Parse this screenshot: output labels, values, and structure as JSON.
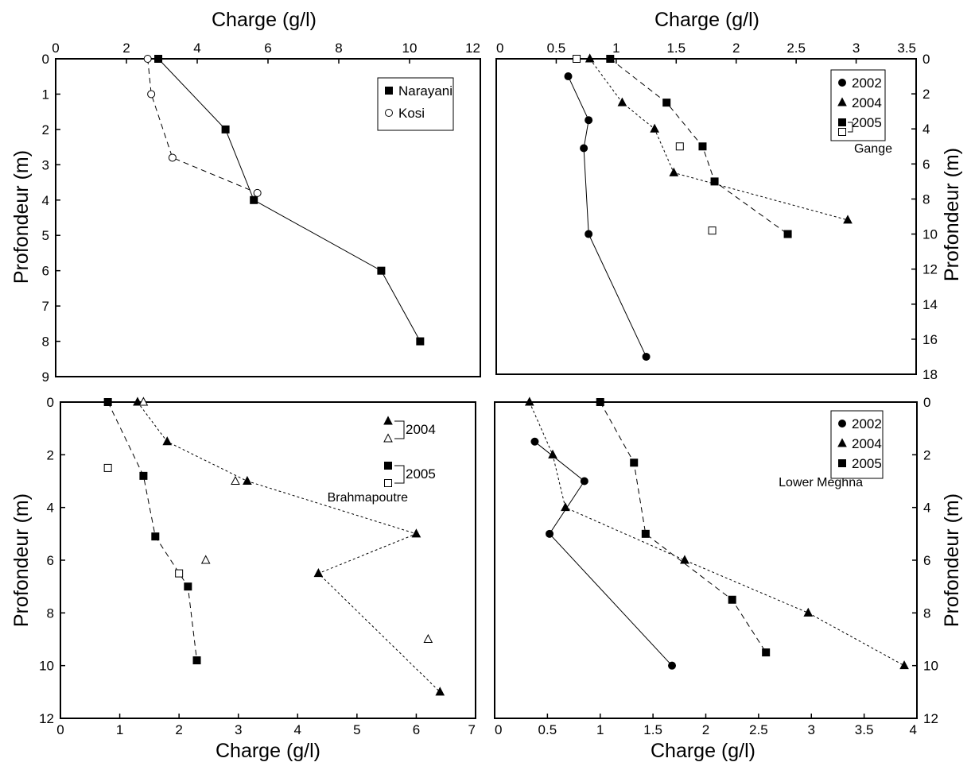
{
  "figure": {
    "top_xlabel": "Charge (g/l)",
    "bottom_xlabel": "Charge (g/l)",
    "left_ylabel": "Profondeur (m)",
    "right_ylabel": "Profondeur (m)"
  },
  "chart_data": [
    {
      "type": "scatter",
      "panel": "top-left",
      "title": "",
      "xlabel": "Charge (g/l)",
      "ylabel": "Profondeur (m)",
      "xlim": [
        0,
        12
      ],
      "ylim": [
        9,
        0
      ],
      "xticks": [
        "0",
        "2",
        "4",
        "6",
        "8",
        "10",
        "12"
      ],
      "yticks": [
        "0",
        "1",
        "2",
        "3",
        "4",
        "5",
        "6",
        "7",
        "8",
        "9"
      ],
      "legend_position": "top-right",
      "series": [
        {
          "name": "Narayani",
          "marker": "square-filled",
          "line": "solid",
          "x": [
            2.9,
            4.8,
            5.6,
            9.2,
            10.3
          ],
          "y": [
            0,
            2,
            4,
            6,
            8
          ]
        },
        {
          "name": "Kosi",
          "marker": "circle-open",
          "line": "dashed",
          "x": [
            2.6,
            2.7,
            3.3,
            5.7
          ],
          "y": [
            0,
            1,
            2.8,
            3.8
          ]
        }
      ]
    },
    {
      "type": "scatter",
      "panel": "top-right",
      "title": "",
      "annotation": "Gange",
      "xlabel": "Charge (g/l)",
      "ylabel": "Profondeur (m)",
      "xlim": [
        0,
        3.5
      ],
      "ylim": [
        18,
        0
      ],
      "xticks": [
        "0",
        "0.5",
        "1",
        "1.5",
        "2",
        "2.5",
        "3",
        "3.5"
      ],
      "yticks": [
        "0",
        "2",
        "4",
        "6",
        "8",
        "10",
        "12",
        "14",
        "16",
        "18"
      ],
      "legend_position": "top-right",
      "series": [
        {
          "name": "2002",
          "marker": "circle-filled",
          "line": "solid",
          "x": [
            0.6,
            0.77,
            0.73,
            0.77,
            1.25
          ],
          "y": [
            1,
            3.5,
            5.1,
            10,
            17
          ]
        },
        {
          "name": "2004",
          "marker": "triangle-filled",
          "line": "dotted",
          "x": [
            0.78,
            1.05,
            1.32,
            1.48,
            2.93
          ],
          "y": [
            0,
            2.5,
            4,
            6.5,
            9.2
          ]
        },
        {
          "name": "2005",
          "marker": "square-filled",
          "line": "dashed",
          "x": [
            0.95,
            1.42,
            1.72,
            1.82,
            2.43
          ],
          "y": [
            0,
            2.5,
            5,
            7,
            10
          ]
        },
        {
          "name": "",
          "marker": "square-open",
          "line": "none",
          "x": [
            0.67,
            1.53,
            1.8
          ],
          "y": [
            0,
            5,
            9.8
          ]
        }
      ]
    },
    {
      "type": "scatter",
      "panel": "bottom-left",
      "title": "",
      "annotation": "Brahmapoutre",
      "xlabel": "Charge (g/l)",
      "ylabel": "Profondeur (m)",
      "xlim": [
        0,
        7
      ],
      "ylim": [
        12,
        0
      ],
      "xticks": [
        "0",
        "1",
        "2",
        "3",
        "4",
        "5",
        "6",
        "7"
      ],
      "yticks": [
        "0",
        "2",
        "4",
        "6",
        "8",
        "10",
        "12"
      ],
      "legend_position": "top-right",
      "series": [
        {
          "name": "2004",
          "marker": "triangle-filled",
          "line": "dotted",
          "x": [
            1.3,
            1.8,
            3.15,
            6.0,
            4.35,
            6.4
          ],
          "y": [
            0,
            1.5,
            3,
            5,
            6.5,
            11
          ]
        },
        {
          "name": "",
          "marker": "triangle-open",
          "line": "none",
          "x": [
            1.4,
            2.95,
            2.45,
            6.2
          ],
          "y": [
            0,
            3,
            6,
            9
          ]
        },
        {
          "name": "2005",
          "marker": "square-filled",
          "line": "dashed",
          "x": [
            0.8,
            1.4,
            1.6,
            2.15,
            2.3
          ],
          "y": [
            0,
            2.8,
            5.1,
            7,
            9.8
          ]
        },
        {
          "name": "",
          "marker": "square-open",
          "line": "none",
          "x": [
            0.8,
            2.0
          ],
          "y": [
            2.5,
            6.5
          ]
        }
      ]
    },
    {
      "type": "scatter",
      "panel": "bottom-right",
      "title": "",
      "annotation": "Lower Meghna",
      "xlabel": "Charge (g/l)",
      "ylabel": "Profondeur (m)",
      "xlim": [
        0,
        4
      ],
      "ylim": [
        12,
        0
      ],
      "xticks": [
        "0",
        "0.5",
        "1",
        "1.5",
        "2",
        "2.5",
        "3",
        "3.5",
        "4"
      ],
      "yticks": [
        "0",
        "2",
        "4",
        "6",
        "8",
        "10",
        "12"
      ],
      "legend_position": "top-right",
      "series": [
        {
          "name": "2002",
          "marker": "circle-filled",
          "line": "solid",
          "x": [
            0.38,
            0.85,
            0.52,
            1.68
          ],
          "y": [
            1.5,
            3,
            5,
            10
          ]
        },
        {
          "name": "2004",
          "marker": "triangle-filled",
          "line": "dotted",
          "x": [
            0.33,
            0.55,
            0.67,
            1.8,
            2.97,
            3.88
          ],
          "y": [
            0,
            2,
            4,
            6,
            8,
            10
          ]
        },
        {
          "name": "2005",
          "marker": "square-filled",
          "line": "dashed",
          "x": [
            1.0,
            1.32,
            1.43,
            2.25,
            2.57
          ],
          "y": [
            0,
            2.3,
            5,
            7.5,
            9.5
          ]
        }
      ]
    }
  ]
}
